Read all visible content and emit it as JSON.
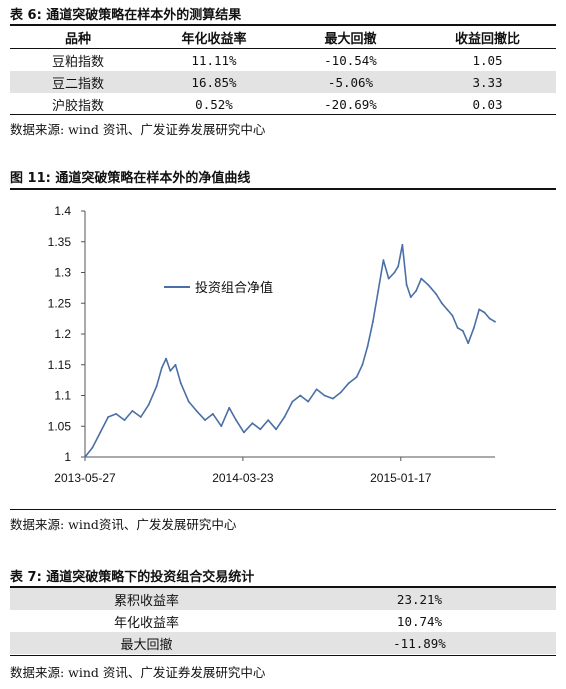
{
  "table6": {
    "caption": "表 6: 通道突破策略在样本外的测算结果",
    "headers": [
      "品种",
      "年化收益率",
      "最大回撤",
      "收益回撤比"
    ],
    "rows": [
      [
        "豆粕指数",
        "11.11%",
        "-10.54%",
        "1.05"
      ],
      [
        "豆二指数",
        "16.85%",
        "-5.06%",
        "3.33"
      ],
      [
        "沪胶指数",
        "0.52%",
        "-20.69%",
        "0.03"
      ]
    ],
    "source": "数据来源: wind 资讯、广发证券发展研究中心"
  },
  "figure11": {
    "caption": "图 11: 通道突破策略在样本外的净值曲线",
    "source": "数据来源: wind资讯、广发发展研究中心"
  },
  "chart_data": {
    "type": "line",
    "title": "",
    "xlabel": "",
    "ylabel": "",
    "ylim": [
      1,
      1.4
    ],
    "yticks": [
      "1",
      "1.05",
      "1.1",
      "1.15",
      "1.2",
      "1.25",
      "1.3",
      "1.35",
      "1.4"
    ],
    "xticks": [
      "2013-05-27",
      "2014-03-23",
      "2015-01-17"
    ],
    "xrange": [
      "2013-05-27",
      "2015-07-15"
    ],
    "grid": false,
    "legend": "inside-left",
    "series_color": "#4a6fa5",
    "series": [
      {
        "name": "投资组合净值",
        "points": [
          [
            "2013-05-27",
            1.0
          ],
          [
            "2013-06-10",
            1.015
          ],
          [
            "2013-06-25",
            1.04
          ],
          [
            "2013-07-10",
            1.065
          ],
          [
            "2013-07-25",
            1.07
          ],
          [
            "2013-08-10",
            1.06
          ],
          [
            "2013-08-25",
            1.075
          ],
          [
            "2013-09-10",
            1.065
          ],
          [
            "2013-09-25",
            1.085
          ],
          [
            "2013-10-10",
            1.115
          ],
          [
            "2013-10-20",
            1.145
          ],
          [
            "2013-10-28",
            1.16
          ],
          [
            "2013-11-05",
            1.14
          ],
          [
            "2013-11-15",
            1.15
          ],
          [
            "2013-11-25",
            1.12
          ],
          [
            "2013-12-10",
            1.09
          ],
          [
            "2013-12-25",
            1.075
          ],
          [
            "2014-01-10",
            1.06
          ],
          [
            "2014-01-25",
            1.07
          ],
          [
            "2014-02-10",
            1.05
          ],
          [
            "2014-02-25",
            1.08
          ],
          [
            "2014-03-10",
            1.06
          ],
          [
            "2014-03-25",
            1.04
          ],
          [
            "2014-04-10",
            1.055
          ],
          [
            "2014-04-25",
            1.045
          ],
          [
            "2014-05-10",
            1.06
          ],
          [
            "2014-05-25",
            1.045
          ],
          [
            "2014-06-10",
            1.065
          ],
          [
            "2014-06-25",
            1.09
          ],
          [
            "2014-07-10",
            1.1
          ],
          [
            "2014-07-25",
            1.09
          ],
          [
            "2014-08-10",
            1.11
          ],
          [
            "2014-08-25",
            1.1
          ],
          [
            "2014-09-10",
            1.095
          ],
          [
            "2014-09-25",
            1.105
          ],
          [
            "2014-10-10",
            1.12
          ],
          [
            "2014-10-25",
            1.13
          ],
          [
            "2014-11-05",
            1.15
          ],
          [
            "2014-11-15",
            1.18
          ],
          [
            "2014-11-25",
            1.22
          ],
          [
            "2014-12-05",
            1.27
          ],
          [
            "2014-12-15",
            1.32
          ],
          [
            "2014-12-25",
            1.29
          ],
          [
            "2015-01-05",
            1.3
          ],
          [
            "2015-01-12",
            1.31
          ],
          [
            "2015-01-20",
            1.345
          ],
          [
            "2015-01-28",
            1.28
          ],
          [
            "2015-02-05",
            1.26
          ],
          [
            "2015-02-15",
            1.27
          ],
          [
            "2015-02-25",
            1.29
          ],
          [
            "2015-03-10",
            1.28
          ],
          [
            "2015-03-25",
            1.265
          ],
          [
            "2015-04-05",
            1.25
          ],
          [
            "2015-04-15",
            1.24
          ],
          [
            "2015-04-25",
            1.23
          ],
          [
            "2015-05-05",
            1.21
          ],
          [
            "2015-05-15",
            1.205
          ],
          [
            "2015-05-25",
            1.185
          ],
          [
            "2015-06-05",
            1.21
          ],
          [
            "2015-06-15",
            1.24
          ],
          [
            "2015-06-25",
            1.235
          ],
          [
            "2015-07-05",
            1.225
          ],
          [
            "2015-07-15",
            1.22
          ]
        ]
      }
    ]
  },
  "table7": {
    "caption": "表 7: 通道突破策略下的投资组合交易统计",
    "rows": [
      [
        "累积收益率",
        "23.21%"
      ],
      [
        "年化收益率",
        "10.74%"
      ],
      [
        "最大回撤",
        "-11.89%"
      ]
    ],
    "source": "数据来源: wind 资讯、广发证券发展研究中心"
  }
}
